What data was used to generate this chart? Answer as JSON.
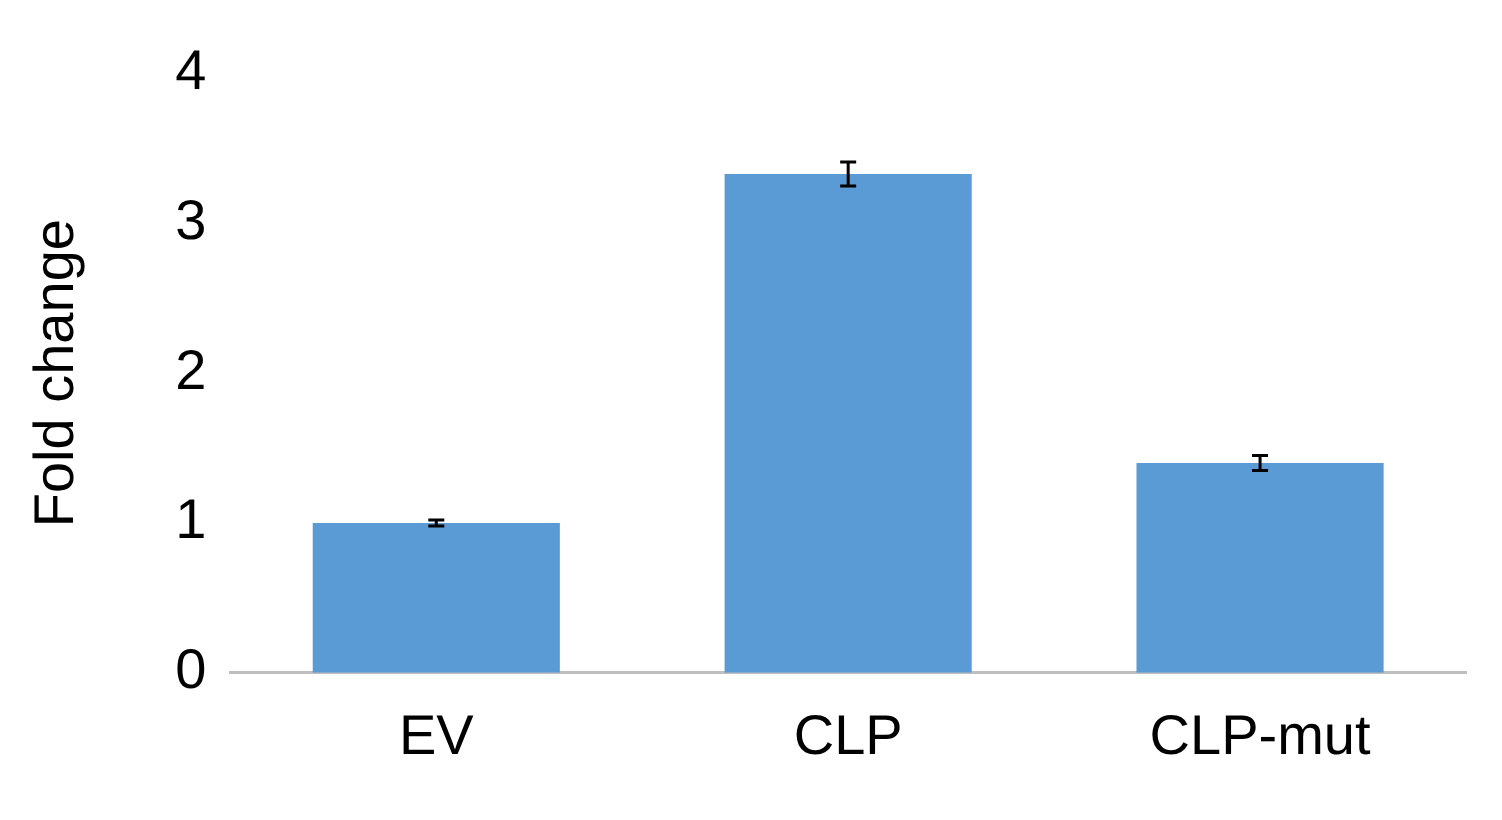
{
  "chart_data": {
    "type": "bar",
    "ylabel": "Fold change",
    "categories": [
      "EV",
      "CLP",
      "CLP-mut"
    ],
    "values": [
      1.0,
      3.33,
      1.4
    ],
    "errors": [
      0.02,
      0.08,
      0.05
    ],
    "color": "#5b9bd5",
    "ylim": [
      0,
      4
    ],
    "yticks": [
      0,
      1,
      2,
      3,
      4
    ],
    "grid": false,
    "legend": false
  }
}
